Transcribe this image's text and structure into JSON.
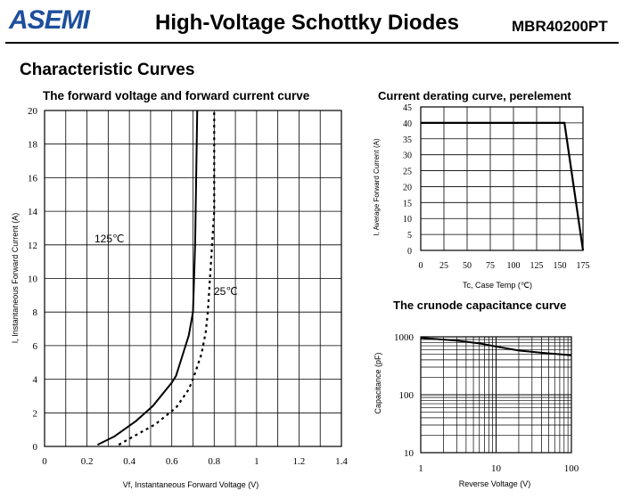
{
  "header": {
    "logo_text": "ASEMI",
    "title": "High-Voltage Schottky Diodes",
    "part_number": "MBR40200PT"
  },
  "section_title": "Characteristic Curves",
  "chart_data": [
    {
      "type": "line",
      "title": "The forward voltage and forward current curve",
      "xlabel": "Vf, Instantaneous Forward Voltage (V)",
      "ylabel": "I, Instantaneous Forward Current (A)",
      "xlim": [
        0,
        1.4
      ],
      "ylim": [
        0,
        20
      ],
      "xticks": [
        0,
        0.2,
        0.4,
        0.6,
        0.8,
        1,
        1.2,
        1.4
      ],
      "xtick_labels": [
        "0",
        "0.2",
        "0.4",
        "0.6",
        "0.8",
        "1",
        "1.2",
        "1.4"
      ],
      "yticks": [
        0,
        2,
        4,
        6,
        8,
        10,
        12,
        14,
        16,
        18,
        20
      ],
      "grid": true,
      "annotations": [
        {
          "text": "125℃",
          "x": 0.24,
          "y": 12.3
        },
        {
          "text": "25℃",
          "x": 0.85,
          "y": 9.2
        }
      ],
      "series": [
        {
          "name": "125℃",
          "style": "solid",
          "x": [
            0.25,
            0.33,
            0.43,
            0.51,
            0.6,
            0.62,
            0.64,
            0.68,
            0.7,
            0.71,
            0.72
          ],
          "y": [
            0.1,
            0.6,
            1.5,
            2.4,
            3.8,
            4.2,
            5,
            6.6,
            8,
            12,
            20
          ]
        },
        {
          "name": "25℃",
          "style": "dotted",
          "x": [
            0.35,
            0.42,
            0.52,
            0.62,
            0.68,
            0.7,
            0.74,
            0.76,
            0.77,
            0.78,
            0.8,
            0.8
          ],
          "y": [
            0.1,
            0.6,
            1.3,
            2.3,
            3.4,
            4,
            5.5,
            6.8,
            8,
            10,
            14,
            20
          ]
        }
      ]
    },
    {
      "type": "line",
      "title": "Current derating curve, perelement",
      "xlabel": "Tc, Case Temp (℃)",
      "ylabel": "I, Average Forward Current (A)",
      "xlim": [
        0,
        175
      ],
      "ylim": [
        0,
        45
      ],
      "xticks": [
        0,
        25,
        50,
        75,
        100,
        125,
        150,
        175
      ],
      "yticks": [
        0,
        5,
        10,
        15,
        20,
        25,
        30,
        35,
        40,
        45
      ],
      "grid": true,
      "series": [
        {
          "x": [
            0,
            155,
            175
          ],
          "y": [
            40,
            40,
            0
          ]
        }
      ]
    },
    {
      "type": "line",
      "title": "The crunode capacitance curve",
      "xlabel": "Reverse Voltage (V)",
      "ylabel": "Capacitance (pF)",
      "xscale": "log",
      "yscale": "log",
      "xlim": [
        1,
        100
      ],
      "ylim": [
        10,
        1000
      ],
      "xticks": [
        1,
        10,
        100
      ],
      "yticks": [
        10,
        100,
        1000
      ],
      "grid": true,
      "series": [
        {
          "x": [
            1,
            3,
            6,
            10,
            20,
            40,
            100
          ],
          "y": [
            960,
            860,
            770,
            680,
            580,
            530,
            480
          ]
        }
      ]
    }
  ]
}
